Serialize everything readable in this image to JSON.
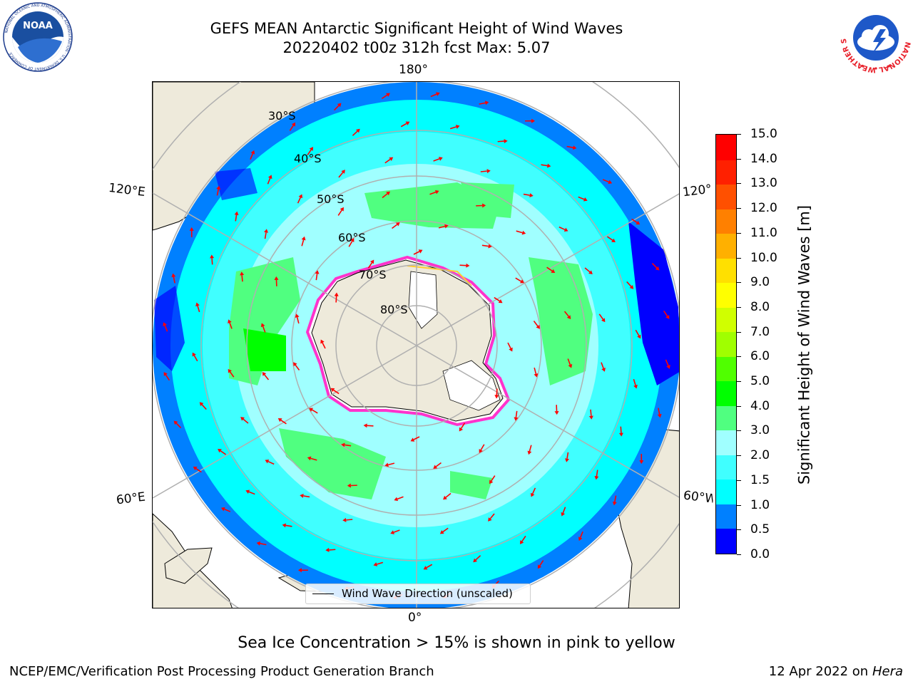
{
  "header": {
    "title_line1": "GEFS MEAN Antarctic Significant Height of Wind Waves",
    "title_line2": "20220402 t00z 312h fcst   Max: 5.07"
  },
  "logos": {
    "noara_text": "NOAA",
    "noaa_ring_text": "NATIONAL OCEANIC AND ATMOSPHERIC ADMINISTRATION · U.S. DEPARTMENT OF COMMERCE",
    "nws_ring_text": "NATIONAL WEATHER SERVICE"
  },
  "map": {
    "longitude_labels": {
      "top": "180°",
      "bottom": "0°",
      "upper_left": "120°E",
      "upper_right": "120°W",
      "lower_left": "60°E",
      "lower_right": "60°W"
    },
    "latitude_labels": [
      "30°S",
      "40°S",
      "50°S",
      "60°S",
      "70°S",
      "80°S"
    ],
    "legend_label": "Wind Wave Direction (unscaled)",
    "colors": {
      "land": "#eeeadb",
      "grid": "#b0b0b0",
      "arrow": "#ff0000",
      "ice_edge_pink": "#ff33cc",
      "ice_edge_yellow": "#ffcc33"
    }
  },
  "colorbar": {
    "label": "Significant Height of Wind Waves [m]",
    "ticks": [
      "0.0",
      "0.5",
      "1.0",
      "1.5",
      "2.0",
      "3.0",
      "4.0",
      "5.0",
      "6.0",
      "7.0",
      "8.0",
      "9.0",
      "10.0",
      "11.0",
      "12.0",
      "13.0",
      "14.0",
      "15.0"
    ],
    "colors": [
      "#0000ff",
      "#0080ff",
      "#00ffff",
      "#40ffff",
      "#a0ffff",
      "#50ff80",
      "#00ff00",
      "#50ff00",
      "#a0ff00",
      "#d0ff00",
      "#ffff00",
      "#ffe000",
      "#ffb000",
      "#ff8000",
      "#ff5000",
      "#ff2000",
      "#ff0000"
    ]
  },
  "note": "Sea Ice Concentration > 15% is shown in pink to yellow",
  "footer": {
    "left": "NCEP/EMC/Verification Post Processing Product Generation Branch",
    "right_prefix": "12 Apr 2022 on ",
    "right_host": "Hera"
  }
}
